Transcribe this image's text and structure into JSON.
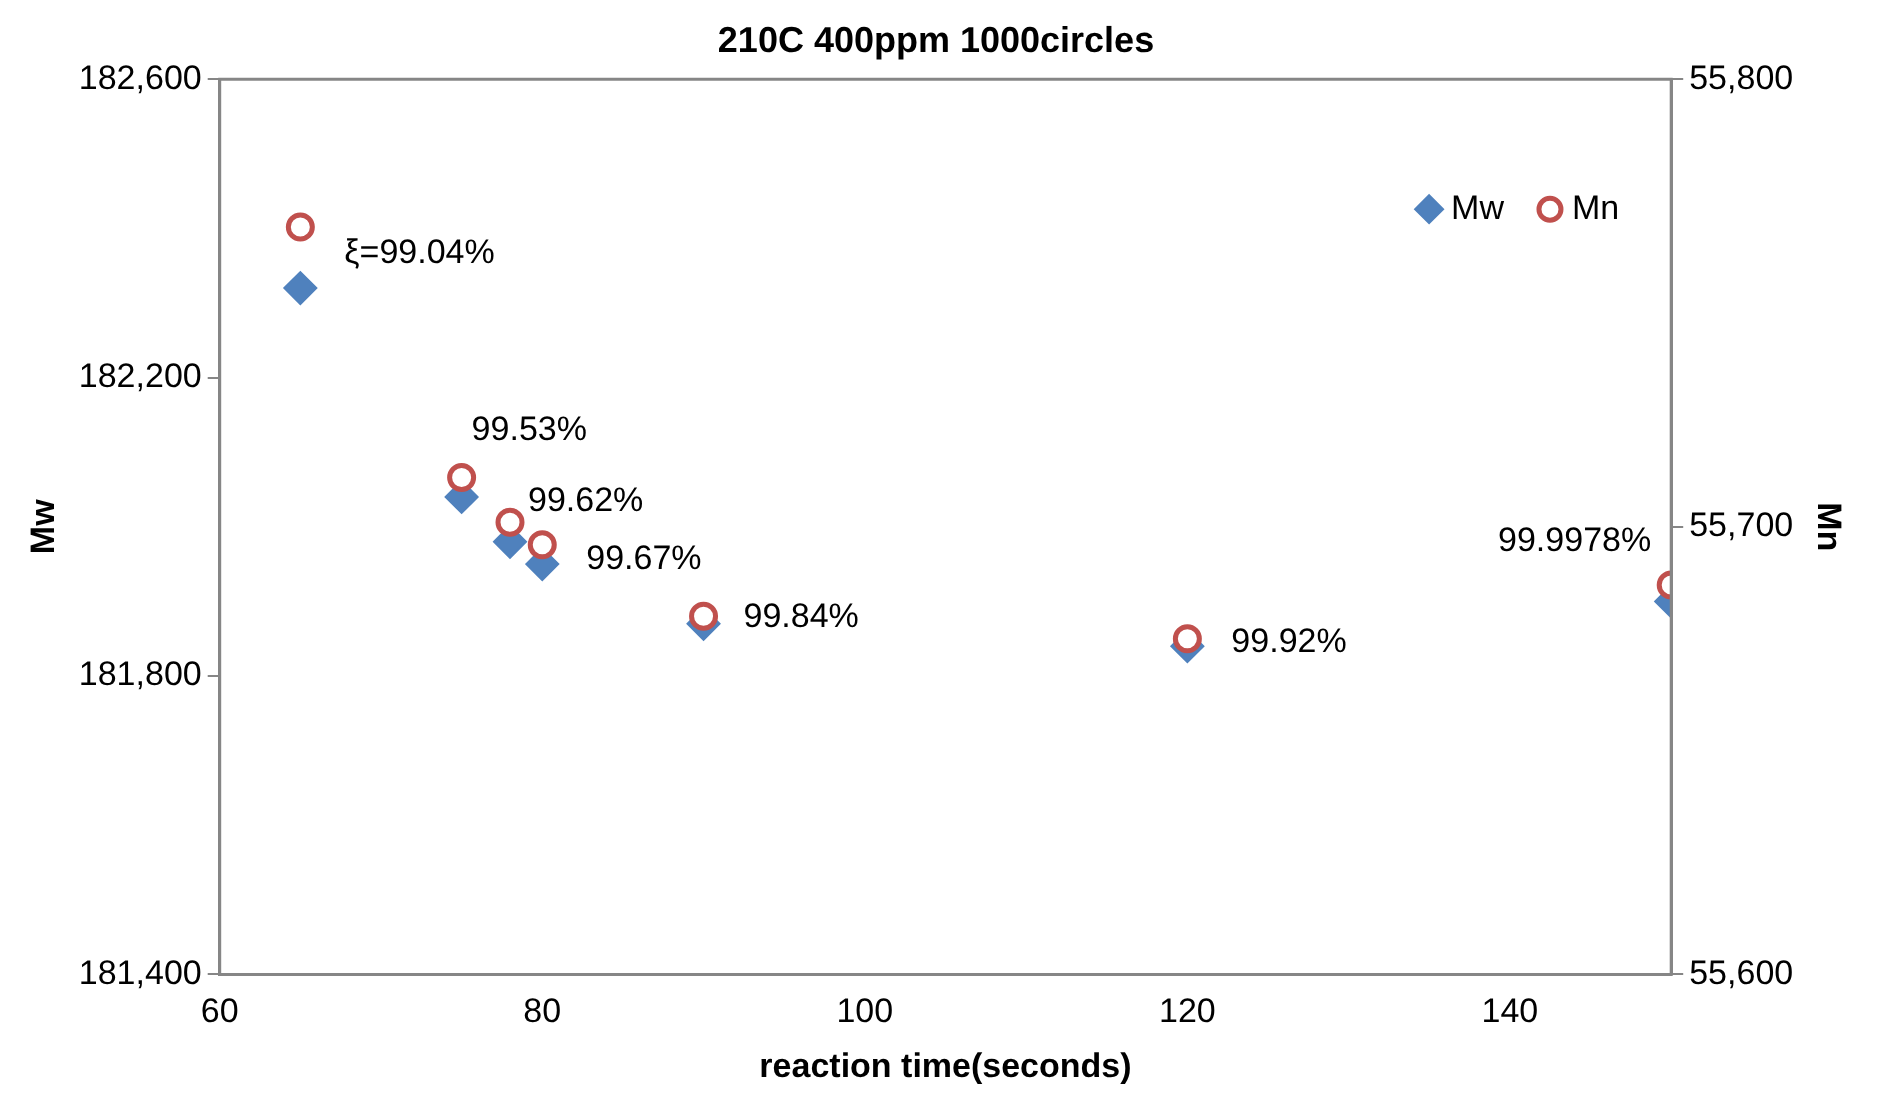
{
  "chart_data": {
    "type": "scatter",
    "title": "210C 400ppm 1000circles",
    "xlabel": "reaction time(seconds)",
    "ylabel": "Mw",
    "y2label": "Mn",
    "x": [
      65,
      75,
      78,
      80,
      90,
      120,
      150
    ],
    "series": [
      {
        "name": "Mw",
        "color": "#4f81bd",
        "marker": "diamond",
        "values": [
          182320,
          182040,
          181980,
          181950,
          181870,
          181840,
          181900
        ]
      },
      {
        "name": "Mn",
        "color": "#c0504d",
        "marker": "circle",
        "axis": "y2",
        "values": [
          55767,
          55711,
          55701,
          55696,
          55680,
          55675,
          55687
        ]
      }
    ],
    "xlim": [
      60,
      150
    ],
    "xticks": [
      60,
      80,
      100,
      120,
      140
    ],
    "ylim": [
      181400,
      182600
    ],
    "yticks": [
      {
        "value": 181400,
        "label": "181,400"
      },
      {
        "value": 181800,
        "label": "181,800"
      },
      {
        "value": 182200,
        "label": "182,200"
      },
      {
        "value": 182600,
        "label": "182,600"
      }
    ],
    "y2lim": [
      55600,
      55800
    ],
    "y2ticks": [
      {
        "value": 55600,
        "label": "55,600"
      },
      {
        "value": 55700,
        "label": "55,700"
      },
      {
        "value": 55800,
        "label": "55,800"
      }
    ],
    "grid": false,
    "legend": "top right",
    "annotations": [
      {
        "text": "ξ=99.04%",
        "x": 65,
        "y": 182320
      },
      {
        "text": "99.53%",
        "x": 75,
        "y": 182040
      },
      {
        "text": "99.62%",
        "x": 78,
        "y": 181980
      },
      {
        "text": "99.67%",
        "x": 80,
        "y": 181950
      },
      {
        "text": "99.84%",
        "x": 90,
        "y": 181870
      },
      {
        "text": "99.92%",
        "x": 120,
        "y": 181840
      },
      {
        "text": "99.9978%",
        "x": 150,
        "y": 181900
      }
    ]
  }
}
